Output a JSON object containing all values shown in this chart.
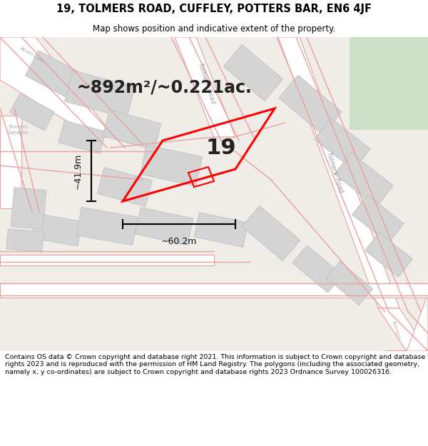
{
  "title_line1": "19, TOLMERS ROAD, CUFFLEY, POTTERS BAR, EN6 4JF",
  "title_line2": "Map shows position and indicative extent of the property.",
  "area_text": "~892m²/~0.221ac.",
  "number_label": "19",
  "width_label": "~60.2m",
  "height_label": "~41.9m",
  "footer_text": "Contains OS data © Crown copyright and database right 2021. This information is subject to Crown copyright and database rights 2023 and is reproduced with the permission of HM Land Registry. The polygons (including the associated geometry, namely x, y co-ordinates) are subject to Crown copyright and database rights 2023 Ordnance Survey 100026316.",
  "map_bg": "#f0eeeb",
  "road_line_color": "#e8a0a0",
  "highlight_color": "#ff0000",
  "white": "#ffffff",
  "green_area": "#cce0c8",
  "building_color": "#d4d4d4",
  "building_edge": "#c0c0c0"
}
